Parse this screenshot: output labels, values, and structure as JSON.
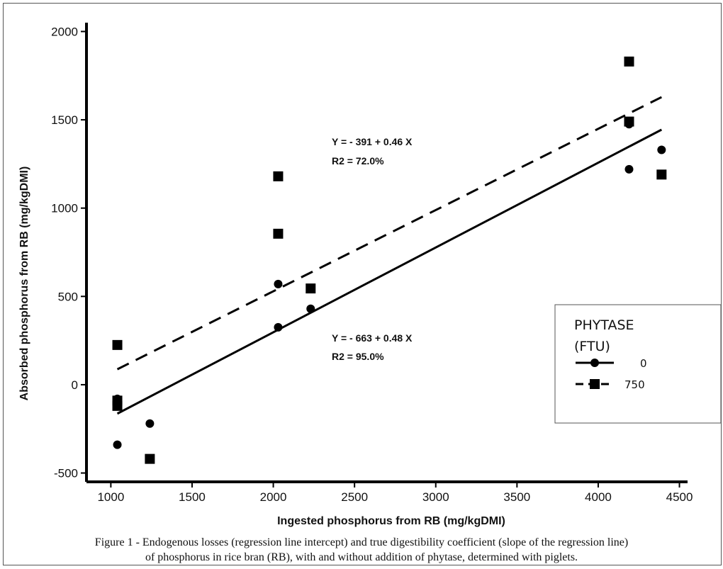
{
  "caption": {
    "line1": "Figure 1 - Endogenous losses (regression line intercept) and true digestibility coefficient (slope of the regression line)",
    "line2": "of phosphorus in rice bran (RB), with and without addition of phytase, determined with piglets."
  },
  "equations": {
    "eq750": "Y = - 391 + 0.46 X",
    "r2_750": "R2 = 72.0%",
    "eq0": "Y = - 663 + 0.48 X",
    "r2_0": "R2 = 95.0%"
  },
  "chart_data": {
    "type": "scatter",
    "xlabel": "Ingested phosphorus from RB (mg/kgDMI)",
    "ylabel": "Absorbed phosphorus from RB (mg/kgDMI)",
    "xlim": [
      850,
      4550
    ],
    "ylim": [
      -550,
      2050
    ],
    "xticks": [
      1000,
      1500,
      2000,
      2500,
      3000,
      3500,
      4000,
      4500
    ],
    "yticks": [
      -500,
      0,
      500,
      1000,
      1500,
      2000
    ],
    "grid": false,
    "legend": {
      "title_line1": "PHYTASE",
      "title_line2": "(FTU)",
      "placement": "right"
    },
    "series": [
      {
        "name": "0",
        "marker": "circle",
        "line": "solid",
        "points": [
          [
            1040,
            -80
          ],
          [
            1040,
            -100
          ],
          [
            1040,
            -340
          ],
          [
            1240,
            -220
          ],
          [
            2030,
            570
          ],
          [
            2030,
            325
          ],
          [
            2230,
            430
          ],
          [
            4190,
            1475
          ],
          [
            4190,
            1220
          ],
          [
            4390,
            1330
          ],
          [
            4390,
            1190
          ]
        ],
        "regression": {
          "intercept": -663,
          "slope": 0.48,
          "x_range": [
            1040,
            4390
          ]
        }
      },
      {
        "name": "750",
        "marker": "square",
        "line": "dashed",
        "points": [
          [
            1040,
            225
          ],
          [
            1040,
            -90
          ],
          [
            1040,
            -120
          ],
          [
            1240,
            -420
          ],
          [
            2030,
            1180
          ],
          [
            2030,
            855
          ],
          [
            2230,
            545
          ],
          [
            4190,
            1830
          ],
          [
            4190,
            1490
          ],
          [
            4390,
            1190
          ]
        ],
        "regression": {
          "intercept": -391,
          "slope": 0.46,
          "x_range": [
            1040,
            4390
          ]
        }
      }
    ]
  }
}
